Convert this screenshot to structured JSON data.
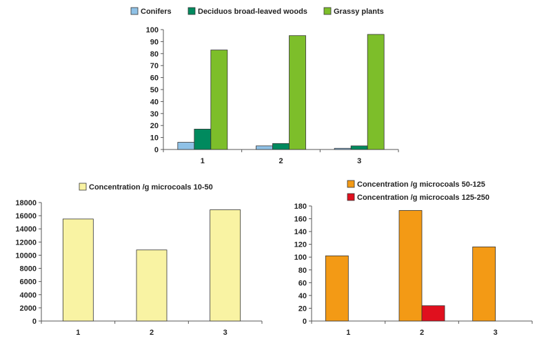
{
  "chart_data": [
    {
      "type": "bar",
      "categories": [
        "1",
        "2",
        "3"
      ],
      "series": [
        {
          "name": "Conifers",
          "values": [
            6,
            3,
            1
          ]
        },
        {
          "name": "Deciduos broad-leaved woods",
          "values": [
            17,
            5,
            3
          ]
        },
        {
          "name": "Grassy plants",
          "values": [
            83,
            95,
            96
          ]
        }
      ],
      "ylim": [
        0,
        100
      ],
      "yticks": [
        "0",
        "10",
        "20",
        "30",
        "40",
        "50",
        "60",
        "70",
        "80",
        "90",
        "100"
      ],
      "legend": "top",
      "grid": false,
      "colors": [
        "#8fc1e6",
        "#008a5e",
        "#7dbe2a"
      ]
    },
    {
      "type": "bar",
      "categories": [
        "1",
        "2",
        "3"
      ],
      "series": [
        {
          "name": "Concentration /g microcoals 10-50",
          "values": [
            15500,
            10800,
            16900
          ]
        }
      ],
      "ylim": [
        0,
        18000
      ],
      "yticks": [
        "0",
        "2000",
        "4000",
        "6000",
        "8000",
        "10000",
        "12000",
        "14000",
        "16000",
        "18000"
      ],
      "legend": "top",
      "grid": false,
      "colors": [
        "#f9f3a3"
      ]
    },
    {
      "type": "bar",
      "categories": [
        "1",
        "2",
        "3"
      ],
      "series": [
        {
          "name": "Concentration /g microcoals 50-125",
          "values": [
            102,
            173,
            116
          ]
        },
        {
          "name": "Concentration /g microcoals 125-250",
          "values": [
            0,
            24,
            0
          ]
        }
      ],
      "ylim": [
        0,
        180
      ],
      "yticks": [
        "0",
        "20",
        "40",
        "60",
        "80",
        "100",
        "120",
        "140",
        "160",
        "180"
      ],
      "legend": "top",
      "grid": false,
      "colors": [
        "#f39a15",
        "#e0101e"
      ]
    }
  ]
}
